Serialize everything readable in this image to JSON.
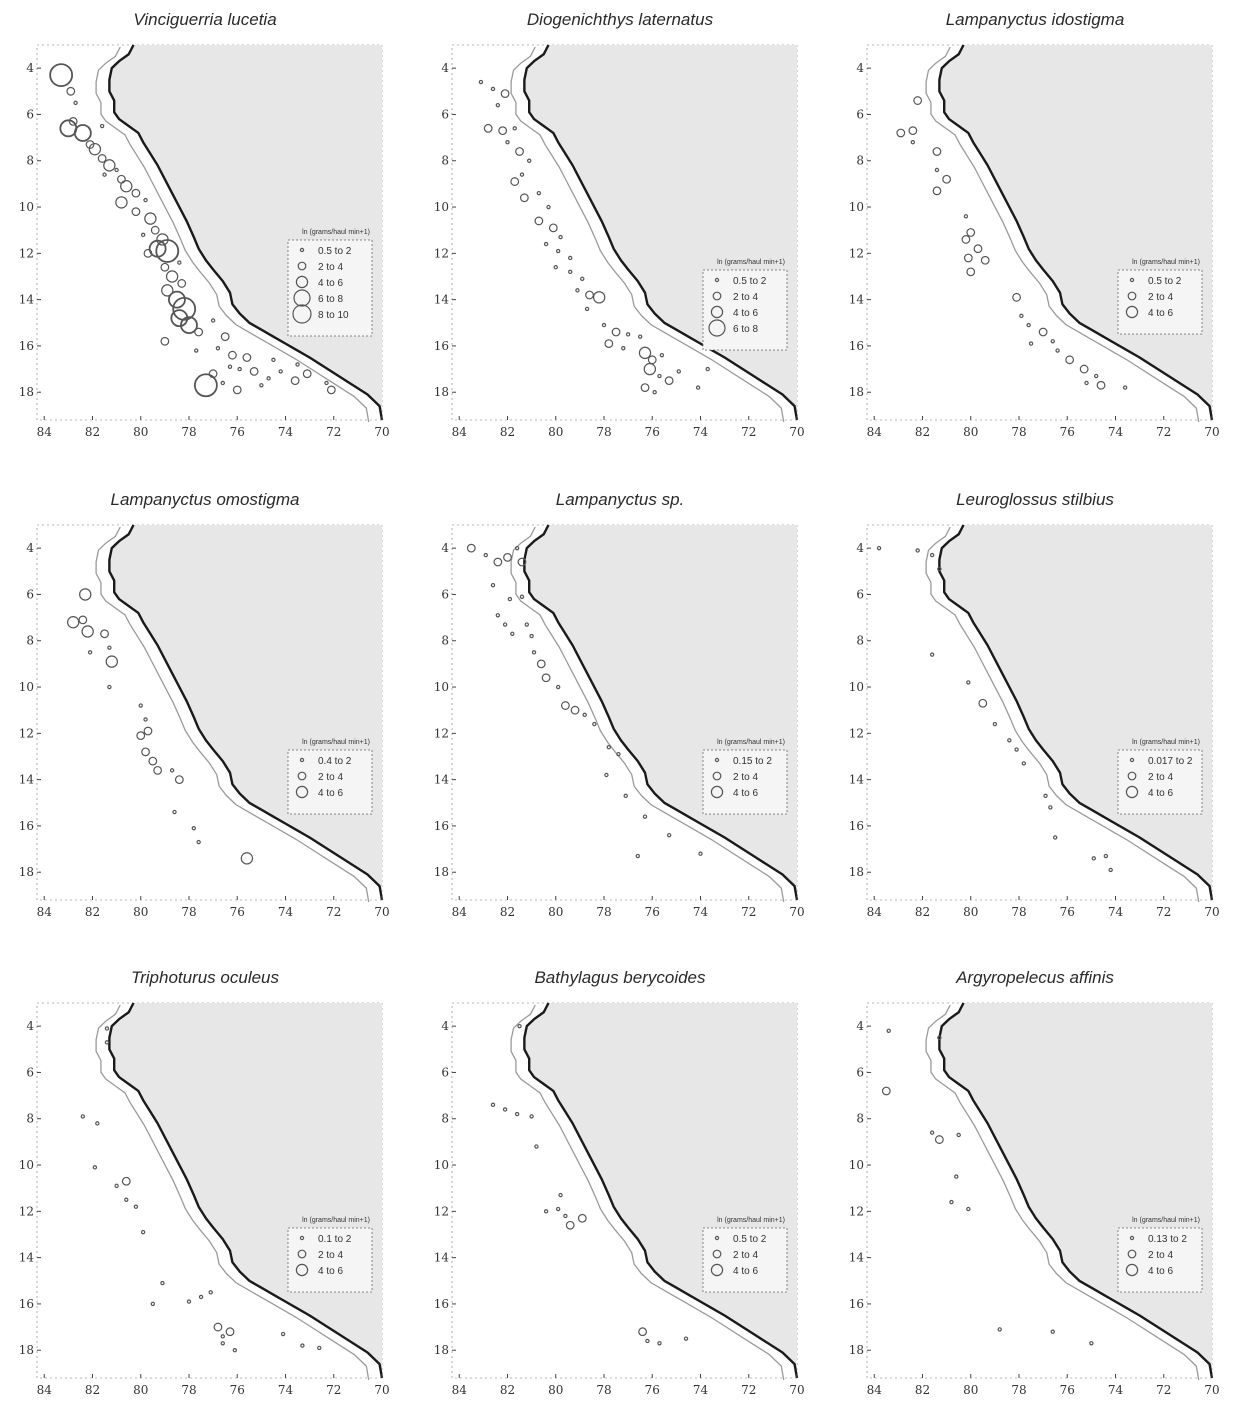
{
  "colors": {
    "land": "#e7e7e7",
    "ocean": "#ffffff",
    "coast": "#1a1a1a",
    "shelf": "#9a9a9a",
    "circle": "#555555"
  },
  "axes": {
    "x_ticks": [
      "84",
      "82",
      "80",
      "78",
      "76",
      "74",
      "72",
      "70"
    ],
    "y_ticks": [
      "4",
      "6",
      "8",
      "10",
      "12",
      "14",
      "16",
      "18"
    ]
  },
  "legend_header": "ln (grams/haul min+1)",
  "panels": [
    {
      "title": "Vinciguerria lucetia",
      "legend": [
        "0.5 to 2",
        "2 to 4",
        "4 to 6",
        "6 to 8",
        "8 to 10"
      ],
      "points": [
        [
          83.3,
          4.3,
          5
        ],
        [
          82.9,
          5.0,
          2
        ],
        [
          82.7,
          5.5,
          1
        ],
        [
          83.0,
          6.6,
          4
        ],
        [
          82.4,
          6.8,
          4
        ],
        [
          82.8,
          6.3,
          2
        ],
        [
          81.6,
          6.5,
          1
        ],
        [
          82.1,
          7.3,
          2
        ],
        [
          81.9,
          7.5,
          3
        ],
        [
          81.6,
          7.9,
          2
        ],
        [
          81.3,
          8.2,
          3
        ],
        [
          81.0,
          8.4,
          1
        ],
        [
          80.8,
          8.8,
          2
        ],
        [
          80.6,
          9.1,
          3
        ],
        [
          80.2,
          9.4,
          2
        ],
        [
          81.5,
          8.6,
          1
        ],
        [
          80.8,
          9.8,
          3
        ],
        [
          79.8,
          9.7,
          1
        ],
        [
          80.2,
          10.2,
          2
        ],
        [
          79.6,
          10.5,
          3
        ],
        [
          79.4,
          11.0,
          2
        ],
        [
          79.9,
          11.2,
          1
        ],
        [
          79.1,
          11.4,
          3
        ],
        [
          79.3,
          11.8,
          4
        ],
        [
          78.9,
          11.9,
          5
        ],
        [
          79.7,
          12.0,
          2
        ],
        [
          78.4,
          12.4,
          1
        ],
        [
          79.0,
          12.6,
          2
        ],
        [
          78.7,
          13.0,
          3
        ],
        [
          78.3,
          13.3,
          2
        ],
        [
          78.9,
          13.6,
          3
        ],
        [
          78.5,
          14.0,
          4
        ],
        [
          78.2,
          14.4,
          5
        ],
        [
          78.4,
          14.8,
          4
        ],
        [
          78.0,
          15.1,
          4
        ],
        [
          77.6,
          15.4,
          2
        ],
        [
          77.0,
          14.9,
          1
        ],
        [
          76.5,
          15.6,
          2
        ],
        [
          76.8,
          16.1,
          1
        ],
        [
          76.2,
          16.4,
          2
        ],
        [
          75.6,
          16.5,
          2
        ],
        [
          75.9,
          17.0,
          1
        ],
        [
          75.3,
          17.1,
          2
        ],
        [
          74.7,
          17.4,
          1
        ],
        [
          74.2,
          17.1,
          1
        ],
        [
          73.6,
          17.5,
          2
        ],
        [
          73.1,
          17.2,
          2
        ],
        [
          72.3,
          17.6,
          1
        ],
        [
          72.1,
          17.9,
          2
        ],
        [
          79.0,
          15.8,
          2
        ],
        [
          77.7,
          16.2,
          1
        ],
        [
          77.0,
          17.2,
          2
        ],
        [
          76.6,
          17.6,
          1
        ],
        [
          76.0,
          17.9,
          2
        ],
        [
          75.0,
          17.7,
          1
        ],
        [
          77.3,
          17.7,
          5
        ],
        [
          74.5,
          16.6,
          1
        ],
        [
          73.5,
          16.8,
          1
        ],
        [
          76.3,
          16.9,
          1
        ]
      ]
    },
    {
      "title": "Diogenichthys laternatus",
      "legend": [
        "0.5 to 2",
        "2 to 4",
        "4 to 6",
        "6 to 8"
      ],
      "points": [
        [
          83.1,
          4.6,
          1
        ],
        [
          82.6,
          4.9,
          1
        ],
        [
          82.1,
          5.1,
          2
        ],
        [
          82.4,
          5.6,
          1
        ],
        [
          82.8,
          6.6,
          2
        ],
        [
          82.2,
          6.7,
          2
        ],
        [
          81.7,
          6.6,
          1
        ],
        [
          82.0,
          7.2,
          1
        ],
        [
          81.5,
          7.6,
          2
        ],
        [
          81.1,
          8.0,
          1
        ],
        [
          81.4,
          8.6,
          1
        ],
        [
          81.7,
          8.9,
          2
        ],
        [
          81.3,
          9.6,
          2
        ],
        [
          80.7,
          9.4,
          1
        ],
        [
          80.3,
          10.0,
          1
        ],
        [
          80.7,
          10.6,
          2
        ],
        [
          80.1,
          10.9,
          2
        ],
        [
          79.8,
          11.3,
          1
        ],
        [
          80.4,
          11.6,
          1
        ],
        [
          79.9,
          11.9,
          1
        ],
        [
          79.4,
          12.2,
          1
        ],
        [
          80.0,
          12.6,
          1
        ],
        [
          79.4,
          12.8,
          1
        ],
        [
          78.9,
          13.1,
          1
        ],
        [
          79.1,
          13.6,
          1
        ],
        [
          78.6,
          13.8,
          2
        ],
        [
          78.2,
          13.9,
          3
        ],
        [
          78.7,
          14.4,
          1
        ],
        [
          78.0,
          15.1,
          1
        ],
        [
          77.5,
          15.4,
          2
        ],
        [
          77.0,
          15.5,
          1
        ],
        [
          76.5,
          15.6,
          1
        ],
        [
          77.8,
          15.9,
          2
        ],
        [
          77.2,
          16.1,
          1
        ],
        [
          76.3,
          16.3,
          3
        ],
        [
          76.0,
          16.6,
          2
        ],
        [
          75.6,
          16.4,
          1
        ],
        [
          76.1,
          17.0,
          3
        ],
        [
          75.7,
          17.3,
          1
        ],
        [
          75.3,
          17.5,
          2
        ],
        [
          74.9,
          17.1,
          1
        ],
        [
          74.1,
          17.8,
          1
        ],
        [
          73.7,
          17.0,
          1
        ],
        [
          76.3,
          17.8,
          2
        ],
        [
          75.9,
          18.0,
          1
        ]
      ]
    },
    {
      "title": "Lampanyctus idostigma",
      "legend": [
        "0.5 to 2",
        "2 to 4",
        "4 to 6"
      ],
      "points": [
        [
          82.2,
          5.4,
          2
        ],
        [
          82.9,
          6.8,
          2
        ],
        [
          82.4,
          6.7,
          2
        ],
        [
          82.4,
          7.2,
          1
        ],
        [
          81.4,
          7.6,
          2
        ],
        [
          81.4,
          8.4,
          1
        ],
        [
          81.0,
          8.8,
          2
        ],
        [
          81.4,
          9.3,
          2
        ],
        [
          80.2,
          10.4,
          1
        ],
        [
          80.0,
          11.1,
          2
        ],
        [
          80.2,
          11.4,
          2
        ],
        [
          79.7,
          11.8,
          2
        ],
        [
          80.1,
          12.2,
          2
        ],
        [
          79.4,
          12.3,
          2
        ],
        [
          80.0,
          12.8,
          2
        ],
        [
          78.1,
          13.9,
          2
        ],
        [
          77.9,
          14.7,
          1
        ],
        [
          77.6,
          15.1,
          1
        ],
        [
          77.0,
          15.4,
          2
        ],
        [
          76.6,
          15.8,
          1
        ],
        [
          76.4,
          16.2,
          1
        ],
        [
          75.9,
          16.6,
          2
        ],
        [
          75.3,
          17.0,
          2
        ],
        [
          74.8,
          17.3,
          1
        ],
        [
          74.6,
          17.7,
          2
        ],
        [
          73.6,
          17.8,
          1
        ],
        [
          77.5,
          15.9,
          1
        ],
        [
          75.2,
          17.6,
          1
        ]
      ]
    },
    {
      "title": "Lampanyctus omostigma",
      "legend": [
        "0.4 to 2",
        "2 to 4",
        "4 to 6"
      ],
      "points": [
        [
          82.3,
          6.0,
          3
        ],
        [
          82.8,
          7.2,
          3
        ],
        [
          82.4,
          7.1,
          2
        ],
        [
          82.2,
          7.6,
          3
        ],
        [
          81.5,
          7.7,
          2
        ],
        [
          81.3,
          8.3,
          1
        ],
        [
          81.2,
          8.9,
          3
        ],
        [
          81.3,
          10.0,
          1
        ],
        [
          80.0,
          10.8,
          1
        ],
        [
          79.8,
          11.4,
          1
        ],
        [
          79.7,
          11.9,
          2
        ],
        [
          80.0,
          12.1,
          2
        ],
        [
          79.8,
          12.8,
          2
        ],
        [
          79.5,
          13.2,
          2
        ],
        [
          79.3,
          13.6,
          2
        ],
        [
          78.7,
          13.6,
          1
        ],
        [
          78.4,
          14.0,
          2
        ],
        [
          78.6,
          15.4,
          1
        ],
        [
          77.8,
          16.1,
          1
        ],
        [
          77.6,
          16.7,
          1
        ],
        [
          75.6,
          17.4,
          3
        ],
        [
          82.1,
          8.5,
          1
        ]
      ]
    },
    {
      "title": "Lampanyctus sp.",
      "legend": [
        "0.15 to 2",
        "2 to 4",
        "4 to 6"
      ],
      "points": [
        [
          83.5,
          4.0,
          2
        ],
        [
          82.9,
          4.3,
          1
        ],
        [
          82.4,
          4.6,
          2
        ],
        [
          82.0,
          4.4,
          2
        ],
        [
          81.6,
          4.0,
          1
        ],
        [
          81.4,
          4.6,
          2
        ],
        [
          82.6,
          5.6,
          1
        ],
        [
          81.9,
          6.2,
          1
        ],
        [
          81.4,
          6.1,
          1
        ],
        [
          82.4,
          6.9,
          1
        ],
        [
          82.1,
          7.3,
          1
        ],
        [
          81.8,
          7.7,
          1
        ],
        [
          81.2,
          7.3,
          1
        ],
        [
          81.0,
          7.8,
          1
        ],
        [
          80.9,
          8.5,
          1
        ],
        [
          80.6,
          9.0,
          2
        ],
        [
          80.4,
          9.6,
          2
        ],
        [
          79.9,
          10.0,
          1
        ],
        [
          79.6,
          10.8,
          2
        ],
        [
          79.2,
          11.0,
          2
        ],
        [
          78.8,
          11.2,
          1
        ],
        [
          78.4,
          11.6,
          1
        ],
        [
          77.8,
          12.6,
          1
        ],
        [
          77.4,
          12.9,
          1
        ],
        [
          77.9,
          13.8,
          1
        ],
        [
          77.1,
          14.7,
          1
        ],
        [
          76.3,
          15.6,
          1
        ],
        [
          75.3,
          16.4,
          1
        ],
        [
          74.0,
          17.2,
          1
        ],
        [
          76.6,
          17.3,
          1
        ]
      ]
    },
    {
      "title": "Leuroglossus stilbius",
      "legend": [
        "0.017 to 2",
        "2 to 4",
        "4 to 6"
      ],
      "points": [
        [
          83.8,
          4.0,
          1
        ],
        [
          82.2,
          4.1,
          1
        ],
        [
          81.6,
          4.3,
          1
        ],
        [
          81.3,
          4.9,
          1
        ],
        [
          81.6,
          8.6,
          1
        ],
        [
          80.1,
          9.8,
          1
        ],
        [
          79.5,
          10.7,
          2
        ],
        [
          79.0,
          11.6,
          1
        ],
        [
          78.4,
          12.3,
          1
        ],
        [
          78.1,
          12.7,
          1
        ],
        [
          77.8,
          13.3,
          1
        ],
        [
          76.9,
          14.7,
          1
        ],
        [
          76.7,
          15.2,
          1
        ],
        [
          76.5,
          16.5,
          1
        ],
        [
          74.9,
          17.4,
          1
        ],
        [
          74.4,
          17.3,
          1
        ],
        [
          74.2,
          17.9,
          1
        ]
      ]
    },
    {
      "title": "Triphoturus oculeus",
      "legend": [
        "0.1 to 2",
        "2 to 4",
        "4 to 6"
      ],
      "points": [
        [
          81.4,
          4.1,
          1
        ],
        [
          81.4,
          4.7,
          1
        ],
        [
          82.4,
          7.9,
          1
        ],
        [
          81.8,
          8.2,
          1
        ],
        [
          81.9,
          10.1,
          1
        ],
        [
          81.0,
          10.9,
          1
        ],
        [
          80.6,
          10.7,
          2
        ],
        [
          80.6,
          11.5,
          1
        ],
        [
          80.2,
          11.8,
          1
        ],
        [
          79.9,
          12.9,
          1
        ],
        [
          79.1,
          15.1,
          1
        ],
        [
          79.5,
          16.0,
          1
        ],
        [
          78.0,
          15.9,
          1
        ],
        [
          77.5,
          15.7,
          1
        ],
        [
          77.1,
          15.5,
          1
        ],
        [
          76.8,
          17.0,
          2
        ],
        [
          76.6,
          17.4,
          1
        ],
        [
          76.3,
          17.2,
          2
        ],
        [
          76.6,
          17.7,
          1
        ],
        [
          76.1,
          18.0,
          1
        ],
        [
          74.1,
          17.3,
          1
        ],
        [
          73.3,
          17.8,
          1
        ],
        [
          72.6,
          17.9,
          1
        ]
      ]
    },
    {
      "title": "Bathylagus berycoides",
      "legend": [
        "0.5 to 2",
        "2 to 4",
        "4 to 6"
      ],
      "points": [
        [
          81.5,
          4.0,
          1
        ],
        [
          82.6,
          7.4,
          1
        ],
        [
          82.1,
          7.6,
          1
        ],
        [
          81.6,
          7.8,
          1
        ],
        [
          81.0,
          7.9,
          1
        ],
        [
          80.8,
          9.2,
          1
        ],
        [
          79.8,
          11.3,
          1
        ],
        [
          79.9,
          11.9,
          1
        ],
        [
          79.6,
          12.2,
          1
        ],
        [
          79.4,
          12.6,
          2
        ],
        [
          78.9,
          12.3,
          2
        ],
        [
          80.4,
          12.0,
          1
        ],
        [
          76.4,
          17.2,
          2
        ],
        [
          76.2,
          17.6,
          1
        ],
        [
          75.7,
          17.7,
          1
        ],
        [
          74.6,
          17.5,
          1
        ]
      ]
    },
    {
      "title": "Argyropelecus affinis",
      "legend": [
        "0.13 to 2",
        "2 to 4",
        "4 to 6"
      ],
      "points": [
        [
          83.4,
          4.2,
          1
        ],
        [
          83.5,
          6.8,
          2
        ],
        [
          81.6,
          8.6,
          1
        ],
        [
          81.3,
          8.9,
          2
        ],
        [
          80.5,
          8.7,
          1
        ],
        [
          81.3,
          4.5,
          1
        ],
        [
          80.6,
          10.5,
          1
        ],
        [
          80.8,
          11.6,
          1
        ],
        [
          80.1,
          11.9,
          1
        ],
        [
          78.8,
          17.1,
          1
        ],
        [
          76.6,
          17.2,
          1
        ],
        [
          75.0,
          17.7,
          1
        ]
      ]
    }
  ]
}
